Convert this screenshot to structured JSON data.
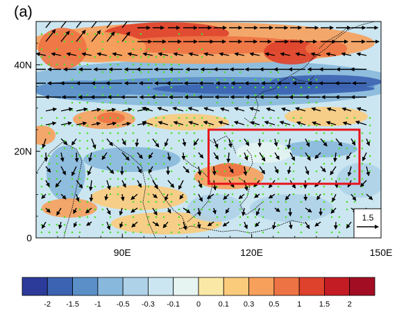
{
  "panel_label": "(a)",
  "map": {
    "x_ticks": [
      {
        "lon": 90,
        "label": "90E"
      },
      {
        "lon": 120,
        "label": "120E"
      },
      {
        "lon": 150,
        "label": "150E"
      }
    ],
    "y_ticks": [
      {
        "lat": 0,
        "label": "0"
      },
      {
        "lat": 20,
        "label": "20N"
      },
      {
        "lat": 40,
        "label": "40N"
      }
    ],
    "lon_range": [
      70,
      150
    ],
    "lat_range": [
      0,
      50
    ],
    "region_box": {
      "lon_min": 110,
      "lon_max": 145,
      "lat_min": 12.5,
      "lat_max": 25,
      "color": "#e8121b"
    },
    "reference_vector": {
      "value_label": "1.5"
    }
  },
  "colorbar": {
    "colors": [
      "#2c3b9a",
      "#3c63b1",
      "#5b8fc8",
      "#88b8dc",
      "#aed2e8",
      "#cbe6f1",
      "#e6f4f2",
      "#fae8a6",
      "#fbcb7c",
      "#f7a05c",
      "#ee7344",
      "#de412c",
      "#c41c24",
      "#a30d24"
    ],
    "labels": [
      "-2",
      "-1.5",
      "-1",
      "-0.5",
      "-0.3",
      "-0.1",
      "0",
      "0.1",
      "0.3",
      "0.5",
      "1",
      "1.5",
      "2"
    ]
  },
  "colors": {
    "vector": "#000000",
    "significance_dot": "#4ee02a",
    "coastline": "#111111"
  }
}
